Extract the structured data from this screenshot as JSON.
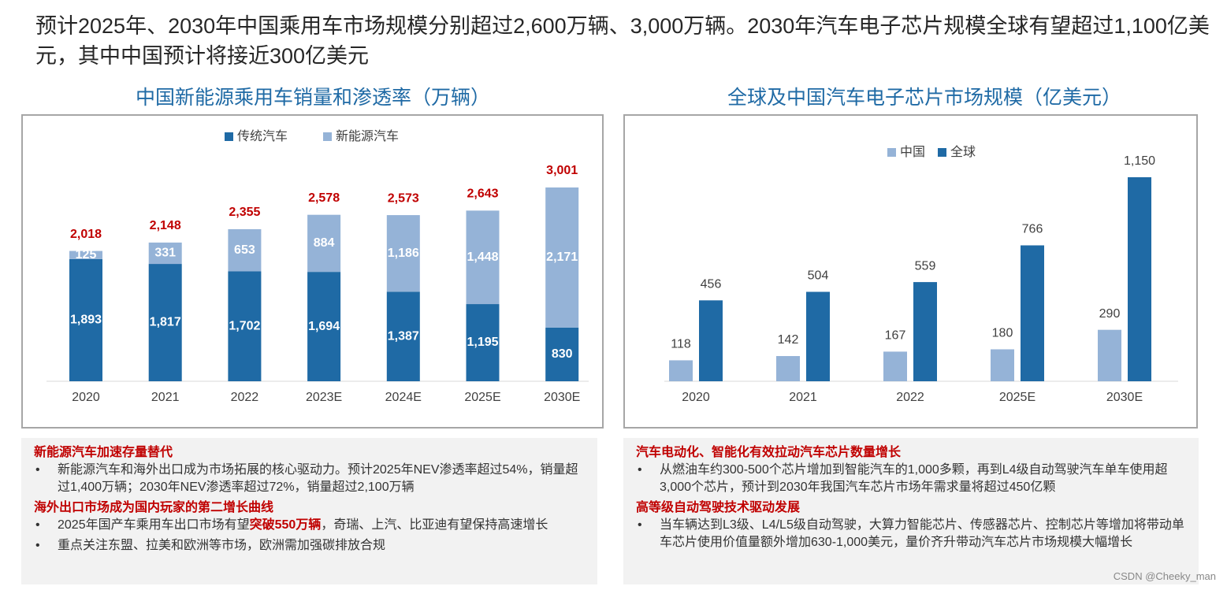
{
  "header": {
    "title": "预计2025年、2030年中国乘用车市场规模分别超过2,600万辆、3,000万辆。2030年汽车电子芯片规模全球有望超过1,100亿美元，其中中国预计将接近300亿美元"
  },
  "chart_data": [
    {
      "type": "stacked_bar",
      "title": "中国新能源乘用车销量和渗透率（万辆）",
      "categories": [
        "2020",
        "2021",
        "2022",
        "2023E",
        "2024E",
        "2025E",
        "2030E"
      ],
      "series": [
        {
          "name": "传统汽车",
          "color": "#1f6aa5",
          "values": [
            1893,
            1817,
            1702,
            1694,
            1387,
            1195,
            830
          ],
          "value_labels": [
            "1,893",
            "1,817",
            "1,702",
            "1,694",
            "1,387",
            "1,195",
            "830"
          ]
        },
        {
          "name": "新能源汽车",
          "color": "#95b3d7",
          "values": [
            125,
            331,
            653,
            884,
            1186,
            1448,
            2171
          ],
          "value_labels": [
            "125",
            "331",
            "653",
            "884",
            "1,186",
            "1,448",
            "2,171"
          ]
        }
      ],
      "totals": [
        2018,
        2148,
        2355,
        2578,
        2573,
        2643,
        3001
      ],
      "total_labels": [
        "2,018",
        "2,148",
        "2,355",
        "2,578",
        "2,573",
        "2,643",
        "3,001"
      ],
      "total_color": "#c00000"
    },
    {
      "type": "grouped_bar",
      "title": "全球及中国汽车电子芯片市场规模（亿美元）",
      "categories": [
        "2020",
        "2021",
        "2022",
        "2025E",
        "2030E"
      ],
      "series": [
        {
          "name": "中国",
          "color": "#95b3d7",
          "values": [
            118,
            142,
            167,
            180,
            290
          ]
        },
        {
          "name": "全球",
          "color": "#1f6aa5",
          "values": [
            456,
            504,
            559,
            766,
            1150
          ],
          "value_labels": [
            "456",
            "504",
            "559",
            "766",
            "1,150"
          ]
        }
      ]
    }
  ],
  "notes": [
    {
      "sections": [
        {
          "heading": "新能源汽车加速存量替代",
          "bullets": [
            [
              {
                "text": "新能源汽车和海外出口成为市场拓展的核心驱动力。预计2025年NEV渗透率超过54%，销量超过1,400万辆；2030年NEV渗透率超过72%，销量超过2,100万辆"
              }
            ]
          ]
        },
        {
          "heading": "海外出口市场成为国内玩家的第二增长曲线",
          "bullets": [
            [
              {
                "text": "2025年国产车乘用车出口市场有望"
              },
              {
                "text": "突破550万辆",
                "highlight": true
              },
              {
                "text": "，奇瑞、上汽、比亚迪有望保持高速增长"
              }
            ],
            [
              {
                "text": "重点关注东盟、拉美和欧洲等市场，欧洲需加强碳排放合规"
              }
            ]
          ]
        }
      ]
    },
    {
      "sections": [
        {
          "heading": "汽车电动化、智能化有效拉动汽车芯片数量增长",
          "bullets": [
            [
              {
                "text": "从燃油车约300-500个芯片增加到智能汽车的1,000多颗，再到L4级自动驾驶汽车单车使用超3,000个芯片，预计到2030年我国汽车芯片市场年需求量将超过450亿颗"
              }
            ]
          ]
        },
        {
          "heading": "高等级自动驾驶技术驱动发展",
          "bullets": [
            [
              {
                "text": "当车辆达到L3级、L4/L5级自动驾驶，大算力智能芯片、传感器芯片、控制芯片等增加将带动单车芯片使用价值量额外增加630-1,000美元，量价齐升带动汽车芯片市场规模大幅增长"
              }
            ]
          ]
        }
      ]
    }
  ],
  "watermark": "CSDN @Cheeky_man"
}
